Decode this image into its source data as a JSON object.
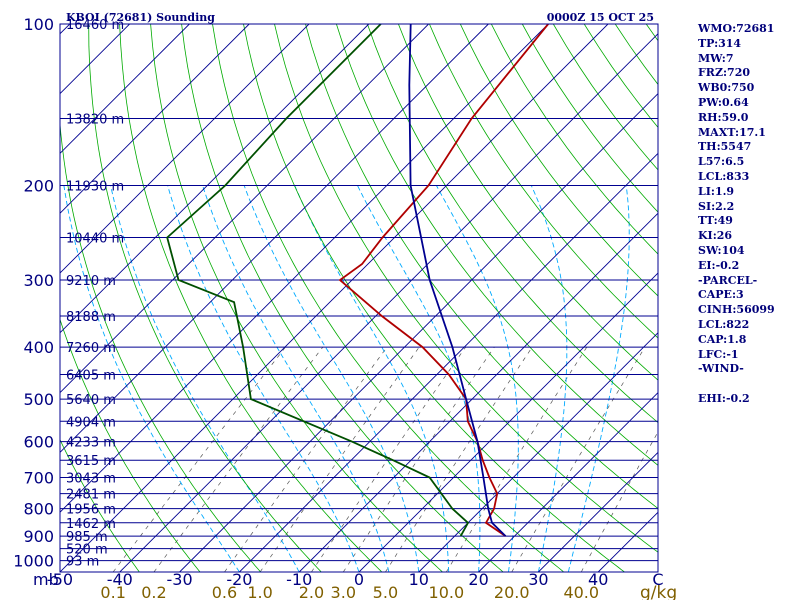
{
  "header": {
    "station": "KBOI (72681) Sounding",
    "time": "0000Z 15 OCT 25"
  },
  "axes": {
    "pressure_unit": "mb",
    "mixing_ratio_unit": "g/kg"
  },
  "chart_data": {
    "type": "skew-t log-p",
    "title": "KBOI (72681) Sounding",
    "time": "0000Z 15 OCT 25",
    "ylabel": "mb",
    "pressure_ticks": [
      100,
      200,
      300,
      400,
      500,
      600,
      700,
      800,
      900,
      1000
    ],
    "temperature_ticks": [
      -40,
      -30,
      -20,
      -10,
      0,
      10,
      20,
      30,
      40
    ],
    "temperature_range": [
      -50,
      50
    ],
    "pressure_range": [
      100,
      1050
    ],
    "mixing_ratio_ticks": [
      "0.1",
      "0.2",
      "0.6",
      "1.0",
      "2.0",
      "3.0",
      "5.0",
      "10.0",
      "20.0",
      "40.0"
    ],
    "heights": [
      {
        "p": 100,
        "label": "16460 m"
      },
      {
        "p": 150,
        "label": "13820 m"
      },
      {
        "p": 200,
        "label": "11930 m"
      },
      {
        "p": 250,
        "label": "10440 m"
      },
      {
        "p": 300,
        "label": "9210 m"
      },
      {
        "p": 350,
        "label": "8188 m"
      },
      {
        "p": 400,
        "label": "7260 m"
      },
      {
        "p": 450,
        "label": "6405 m"
      },
      {
        "p": 500,
        "label": "5640 m"
      },
      {
        "p": 550,
        "label": "4904 m"
      },
      {
        "p": 600,
        "label": "4233 m"
      },
      {
        "p": 650,
        "label": "3615 m"
      },
      {
        "p": 700,
        "label": "3043 m"
      },
      {
        "p": 750,
        "label": "2481 m"
      },
      {
        "p": 800,
        "label": "1956 m"
      },
      {
        "p": 850,
        "label": "1462 m"
      },
      {
        "p": 900,
        "label": "985 m"
      },
      {
        "p": 950,
        "label": "520 m"
      },
      {
        "p": 1000,
        "label": "93 m"
      }
    ],
    "series": [
      {
        "name": "Temperature",
        "color": "#b00000",
        "points": [
          [
            100,
            -60
          ],
          [
            150,
            -57
          ],
          [
            200,
            -53
          ],
          [
            250,
            -52
          ],
          [
            280,
            -51
          ],
          [
            300,
            -52
          ],
          [
            350,
            -39
          ],
          [
            400,
            -27
          ],
          [
            450,
            -18
          ],
          [
            500,
            -11
          ],
          [
            550,
            -7
          ],
          [
            600,
            -2
          ],
          [
            650,
            2
          ],
          [
            700,
            6
          ],
          [
            750,
            10
          ],
          [
            800,
            12
          ],
          [
            850,
            13
          ],
          [
            900,
            18.5
          ]
        ]
      },
      {
        "name": "Dew Point",
        "color": "#005000",
        "points": [
          [
            100,
            -88
          ],
          [
            150,
            -88
          ],
          [
            200,
            -87
          ],
          [
            250,
            -88
          ],
          [
            300,
            -79
          ],
          [
            330,
            -66
          ],
          [
            400,
            -57
          ],
          [
            500,
            -47
          ],
          [
            600,
            -23
          ],
          [
            650,
            -13
          ],
          [
            700,
            -4
          ],
          [
            800,
            5
          ],
          [
            850,
            10
          ],
          [
            900,
            11
          ]
        ]
      },
      {
        "name": "Parcel",
        "color": "#000090",
        "points": [
          [
            900,
            18.5
          ],
          [
            850,
            14
          ],
          [
            800,
            11
          ],
          [
            700,
            5
          ],
          [
            600,
            -2
          ],
          [
            500,
            -11
          ],
          [
            400,
            -22
          ],
          [
            300,
            -37
          ],
          [
            200,
            -56
          ],
          [
            130,
            -73
          ],
          [
            100,
            -83
          ]
        ]
      }
    ]
  },
  "sidebar": {
    "lines": [
      "WMO:72681",
      "TP:314",
      "MW:7",
      "FRZ:720",
      "WB0:750",
      "PW:0.64",
      "RH:59.0",
      "MAXT:17.1",
      "TH:5547",
      "L57:6.5",
      "LCL:833",
      "LI:1.9",
      "SI:2.2",
      "TT:49",
      "KI:26",
      "SW:104",
      "EI:-0.2",
      "-PARCEL-",
      "CAPE:3",
      "CINH:56099",
      "LCL:822",
      "CAP:1.8",
      "LFC:-1",
      "-WIND-",
      "",
      "EHI:-0.2"
    ]
  },
  "colors": {
    "isobar": "#000090",
    "isotherm": "#000090",
    "dry_adiabat": "#00aa00",
    "moist_adiabat": "#00aaff",
    "mixing_ratio": "#555555",
    "temperature": "#b00000",
    "dewpoint": "#005000",
    "parcel": "#000090",
    "label": "#000080",
    "mixing_label": "#806000"
  }
}
